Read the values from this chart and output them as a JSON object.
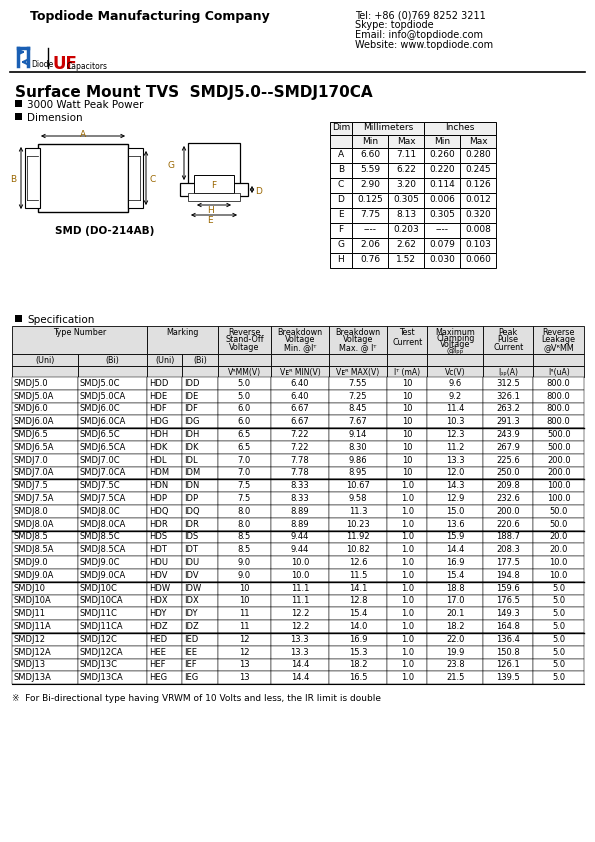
{
  "company": "Topdiode Manufacturing Company",
  "tel": "Tel: +86 (0)769 8252 3211",
  "skype": "Skype: topdiode",
  "email": "Email: info@topdiode.com",
  "website": "Website: www.topdiode.com",
  "title": "Surface Mount TVS  SMDJ5.0--SMDJ170CA",
  "bullet1": "3000 Watt Peak Power",
  "bullet2": "Dimension",
  "smd_label": "SMD (DO-214AB)",
  "spec_label": "Specification",
  "footnote": "※  For Bi-directional type having VRWM of 10 Volts and less, the IR limit is double",
  "dim_rows": [
    [
      "A",
      "6.60",
      "7.11",
      "0.260",
      "0.280"
    ],
    [
      "B",
      "5.59",
      "6.22",
      "0.220",
      "0.245"
    ],
    [
      "C",
      "2.90",
      "3.20",
      "0.114",
      "0.126"
    ],
    [
      "D",
      "0.125",
      "0.305",
      "0.006",
      "0.012"
    ],
    [
      "E",
      "7.75",
      "8.13",
      "0.305",
      "0.320"
    ],
    [
      "F",
      "----",
      "0.203",
      "----",
      "0.008"
    ],
    [
      "G",
      "2.06",
      "2.62",
      "0.079",
      "0.103"
    ],
    [
      "H",
      "0.76",
      "1.52",
      "0.030",
      "0.060"
    ]
  ],
  "spec_rows": [
    [
      "SMDJ5.0",
      "SMDJ5.0C",
      "HDD",
      "IDD",
      "5.0",
      "6.40",
      "7.55",
      "10",
      "9.6",
      "312.5",
      "800.0"
    ],
    [
      "SMDJ5.0A",
      "SMDJ5.0CA",
      "HDE",
      "IDE",
      "5.0",
      "6.40",
      "7.25",
      "10",
      "9.2",
      "326.1",
      "800.0"
    ],
    [
      "SMDJ6.0",
      "SMDJ6.0C",
      "HDF",
      "IDF",
      "6.0",
      "6.67",
      "8.45",
      "10",
      "11.4",
      "263.2",
      "800.0"
    ],
    [
      "SMDJ6.0A",
      "SMDJ6.0CA",
      "HDG",
      "IDG",
      "6.0",
      "6.67",
      "7.67",
      "10",
      "10.3",
      "291.3",
      "800.0"
    ],
    [
      "SMDJ6.5",
      "SMDJ6.5C",
      "HDH",
      "IDH",
      "6.5",
      "7.22",
      "9.14",
      "10",
      "12.3",
      "243.9",
      "500.0"
    ],
    [
      "SMDJ6.5A",
      "SMDJ6.5CA",
      "HDK",
      "IDK",
      "6.5",
      "7.22",
      "8.30",
      "10",
      "11.2",
      "267.9",
      "500.0"
    ],
    [
      "SMDJ7.0",
      "SMDJ7.0C",
      "HDL",
      "IDL",
      "7.0",
      "7.78",
      "9.86",
      "10",
      "13.3",
      "225.6",
      "200.0"
    ],
    [
      "SMDJ7.0A",
      "SMDJ7.0CA",
      "HDM",
      "IDM",
      "7.0",
      "7.78",
      "8.95",
      "10",
      "12.0",
      "250.0",
      "200.0"
    ],
    [
      "SMDJ7.5",
      "SMDJ7.5C",
      "HDN",
      "IDN",
      "7.5",
      "8.33",
      "10.67",
      "1.0",
      "14.3",
      "209.8",
      "100.0"
    ],
    [
      "SMDJ7.5A",
      "SMDJ7.5CA",
      "HDP",
      "IDP",
      "7.5",
      "8.33",
      "9.58",
      "1.0",
      "12.9",
      "232.6",
      "100.0"
    ],
    [
      "SMDJ8.0",
      "SMDJ8.0C",
      "HDQ",
      "IDQ",
      "8.0",
      "8.89",
      "11.3",
      "1.0",
      "15.0",
      "200.0",
      "50.0"
    ],
    [
      "SMDJ8.0A",
      "SMDJ8.0CA",
      "HDR",
      "IDR",
      "8.0",
      "8.89",
      "10.23",
      "1.0",
      "13.6",
      "220.6",
      "50.0"
    ],
    [
      "SMDJ8.5",
      "SMDJ8.5C",
      "HDS",
      "IDS",
      "8.5",
      "9.44",
      "11.92",
      "1.0",
      "15.9",
      "188.7",
      "20.0"
    ],
    [
      "SMDJ8.5A",
      "SMDJ8.5CA",
      "HDT",
      "IDT",
      "8.5",
      "9.44",
      "10.82",
      "1.0",
      "14.4",
      "208.3",
      "20.0"
    ],
    [
      "SMDJ9.0",
      "SMDJ9.0C",
      "HDU",
      "IDU",
      "9.0",
      "10.0",
      "12.6",
      "1.0",
      "16.9",
      "177.5",
      "10.0"
    ],
    [
      "SMDJ9.0A",
      "SMDJ9.0CA",
      "HDV",
      "IDV",
      "9.0",
      "10.0",
      "11.5",
      "1.0",
      "15.4",
      "194.8",
      "10.0"
    ],
    [
      "SMDJ10",
      "SMDJ10C",
      "HDW",
      "IDW",
      "10",
      "11.1",
      "14.1",
      "1.0",
      "18.8",
      "159.6",
      "5.0"
    ],
    [
      "SMDJ10A",
      "SMDJ10CA",
      "HDX",
      "IDX",
      "10",
      "11.1",
      "12.8",
      "1.0",
      "17.0",
      "176.5",
      "5.0"
    ],
    [
      "SMDJ11",
      "SMDJ11C",
      "HDY",
      "IDY",
      "11",
      "12.2",
      "15.4",
      "1.0",
      "20.1",
      "149.3",
      "5.0"
    ],
    [
      "SMDJ11A",
      "SMDJ11CA",
      "HDZ",
      "IDZ",
      "11",
      "12.2",
      "14.0",
      "1.0",
      "18.2",
      "164.8",
      "5.0"
    ],
    [
      "SMDJ12",
      "SMDJ12C",
      "HED",
      "IED",
      "12",
      "13.3",
      "16.9",
      "1.0",
      "22.0",
      "136.4",
      "5.0"
    ],
    [
      "SMDJ12A",
      "SMDJ12CA",
      "HEE",
      "IEE",
      "12",
      "13.3",
      "15.3",
      "1.0",
      "19.9",
      "150.8",
      "5.0"
    ],
    [
      "SMDJ13",
      "SMDJ13C",
      "HEF",
      "IEF",
      "13",
      "14.4",
      "18.2",
      "1.0",
      "23.8",
      "126.1",
      "5.0"
    ],
    [
      "SMDJ13A",
      "SMDJ13CA",
      "HEG",
      "IEG",
      "13",
      "14.4",
      "16.5",
      "1.0",
      "21.5",
      "139.5",
      "5.0"
    ]
  ],
  "group_separators": [
    4,
    8,
    12,
    16,
    20
  ],
  "bg_color": "#ffffff"
}
